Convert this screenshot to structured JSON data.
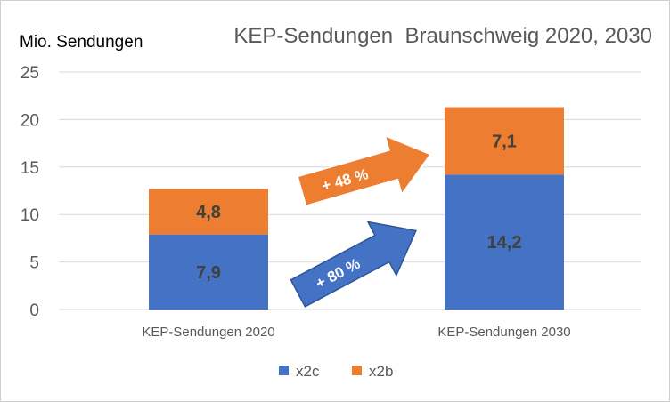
{
  "chart_data": {
    "type": "bar",
    "stacked": true,
    "title": "KEP-Sendungen  Braunschweig 2020, 2030",
    "ylabel": "Mio. Sendungen",
    "xlabel": "",
    "categories": [
      "KEP-Sendungen 2020",
      "KEP-Sendungen 2030"
    ],
    "series": [
      {
        "name": "x2c",
        "values": [
          7.9,
          14.2
        ],
        "labels": [
          "7,9",
          "14,2"
        ],
        "color": "#4472C4"
      },
      {
        "name": "x2b",
        "values": [
          4.8,
          7.1
        ],
        "labels": [
          "4,8",
          "7,1"
        ],
        "color": "#ED7D31"
      }
    ],
    "yticks": [
      "0",
      "5",
      "10",
      "15",
      "20",
      "25"
    ],
    "ylim": [
      0,
      25
    ],
    "grid": "horizontal",
    "legend": "bottom",
    "annotations": [
      {
        "text": "+ 48 %",
        "series": "x2b",
        "color": "#ED7D31"
      },
      {
        "text": "+ 80 %",
        "series": "x2c",
        "color": "#4472C4"
      }
    ]
  }
}
